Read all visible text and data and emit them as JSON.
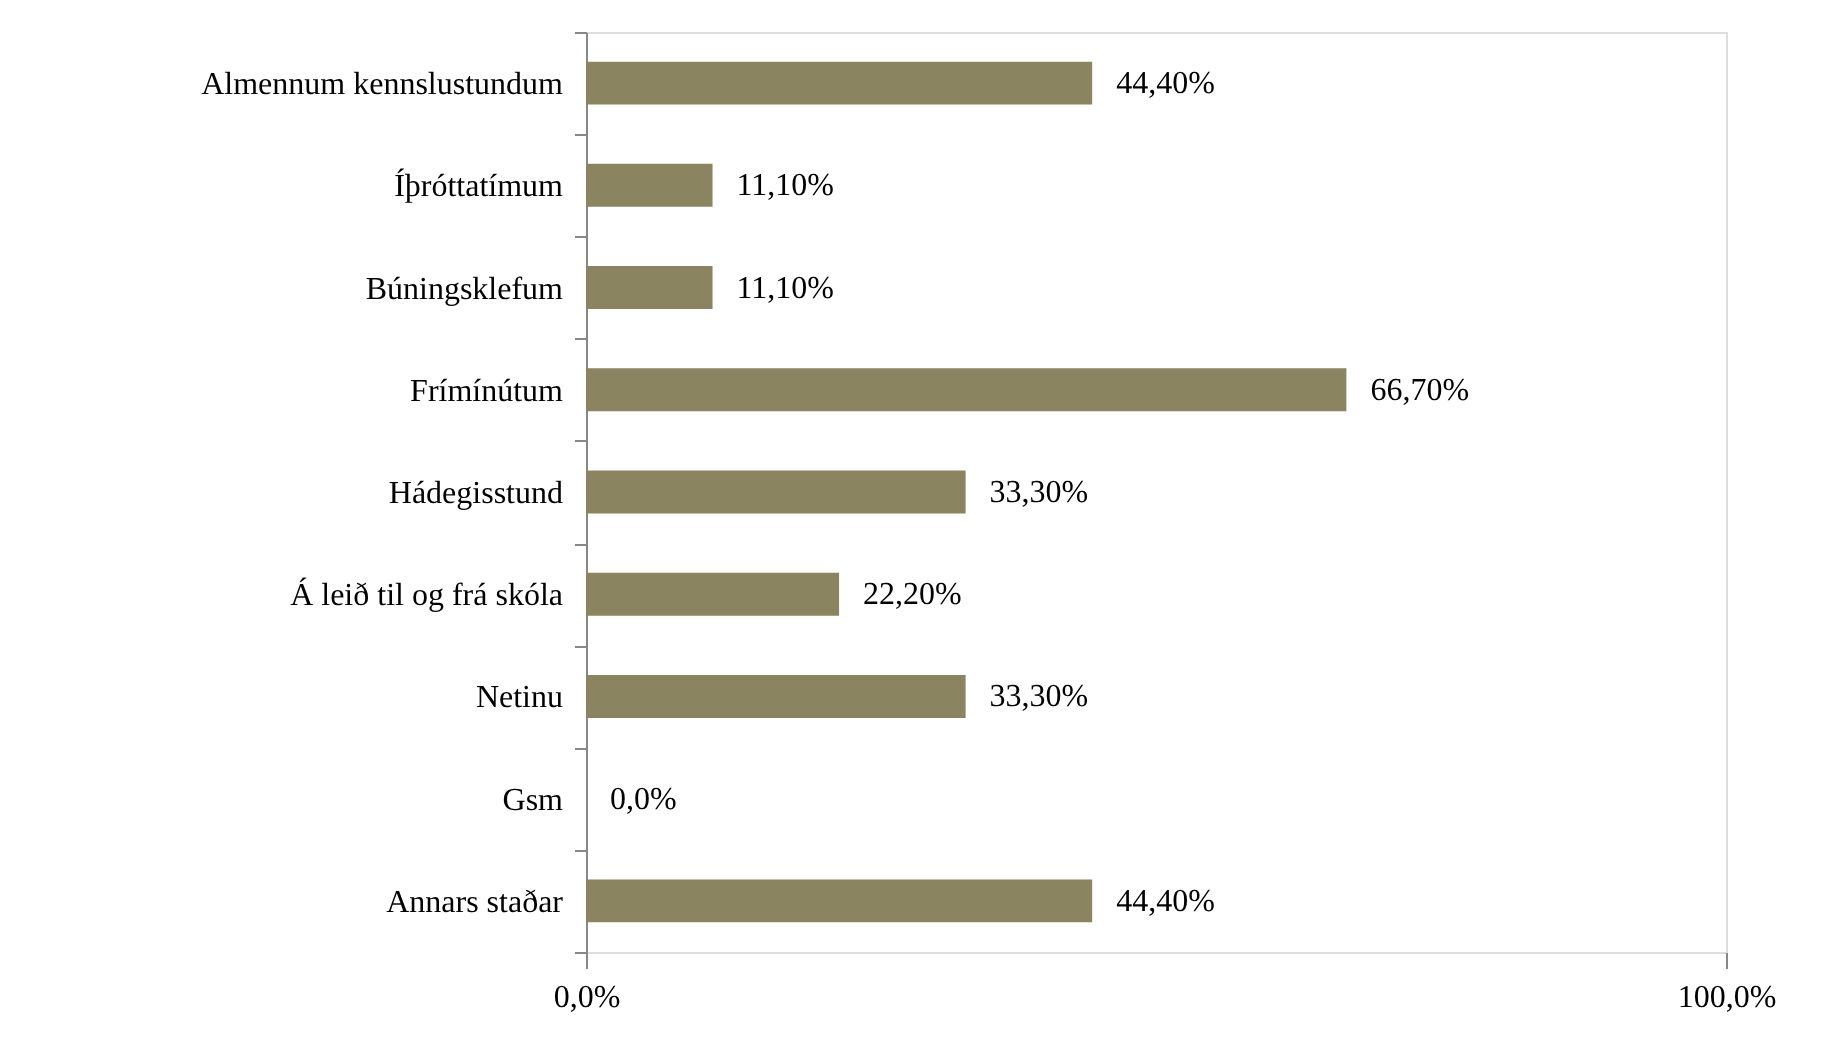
{
  "chart_data": {
    "type": "bar",
    "orientation": "horizontal",
    "categories": [
      "Almennum kennslustundum",
      "Íþróttatímum",
      "Búningsklefum",
      "Frímínútum",
      "Hádegisstund",
      "Á leið til og frá skóla",
      "Netinu",
      "Gsm",
      "Annars staðar"
    ],
    "values": [
      44.4,
      11.1,
      11.1,
      66.7,
      33.3,
      22.2,
      33.3,
      0,
      44.4
    ],
    "value_labels": [
      "44,40%",
      "11,10%",
      "11,10%",
      "66,70%",
      "33,30%",
      "22,20%",
      "33,30%",
      "0,0%",
      "44,40%"
    ],
    "color": "#8a8461",
    "xlim": [
      0,
      100
    ],
    "xticks": [
      {
        "value": 0,
        "label": "0,0%"
      },
      {
        "value": 100,
        "label": "100,0%"
      }
    ],
    "grid": false
  }
}
